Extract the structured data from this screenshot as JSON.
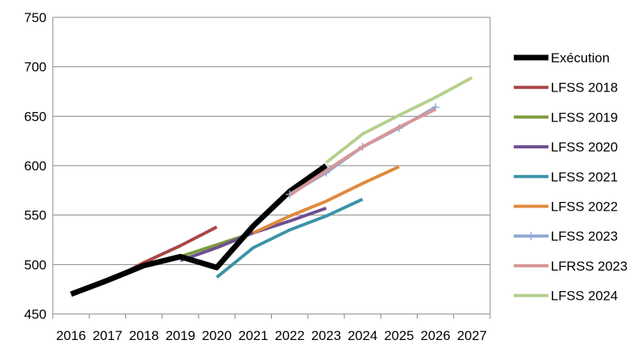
{
  "chart_data": {
    "type": "line",
    "title": "",
    "xlabel": "",
    "ylabel": "",
    "ylim": [
      450,
      750
    ],
    "yticks": [
      450,
      500,
      550,
      600,
      650,
      700,
      750
    ],
    "categories": [
      "2016",
      "2017",
      "2018",
      "2019",
      "2020",
      "2021",
      "2022",
      "2023",
      "2024",
      "2025",
      "2026",
      "2027"
    ],
    "grid": "horizontal",
    "legend_position": "right",
    "series": [
      {
        "name": "Exécution",
        "color": "#000000",
        "values": [
          470,
          484,
          499,
          508,
          497,
          539,
          574,
          600,
          null,
          null,
          null,
          null
        ]
      },
      {
        "name": "LFSS 2018",
        "color": "#A94745",
        "values": [
          null,
          483,
          502,
          519,
          538,
          null,
          null,
          null,
          null,
          null,
          null,
          null
        ]
      },
      {
        "name": "LFSS 2019",
        "color": "#7E9C3F",
        "values": [
          null,
          null,
          498,
          508,
          520,
          532,
          null,
          null,
          null,
          null,
          null,
          null
        ]
      },
      {
        "name": "LFSS 2020",
        "color": "#6D4F90",
        "values": [
          null,
          null,
          null,
          504,
          517,
          532,
          544,
          557,
          null,
          null,
          null,
          null
        ]
      },
      {
        "name": "LFSS 2021",
        "color": "#3A93A7",
        "values": [
          null,
          null,
          null,
          null,
          487,
          517,
          535,
          549,
          566,
          null,
          null,
          null
        ]
      },
      {
        "name": "LFSS 2022",
        "color": "#E08A3C",
        "values": [
          null,
          null,
          null,
          null,
          null,
          532,
          549,
          564,
          582,
          599,
          null,
          null
        ]
      },
      {
        "name": "LFSS 2023",
        "color": "#8FA8D4",
        "values": [
          null,
          null,
          null,
          null,
          null,
          null,
          571,
          593,
          619,
          638,
          659,
          null
        ]
      },
      {
        "name": "LFRSS 2023",
        "color": "#D79696",
        "values": [
          null,
          null,
          null,
          null,
          null,
          null,
          570,
          595,
          619,
          639,
          657,
          null
        ]
      },
      {
        "name": "LFSS 2024",
        "color": "#B5CF8E",
        "values": [
          null,
          null,
          null,
          null,
          null,
          null,
          null,
          603,
          632,
          651,
          669,
          689
        ]
      }
    ]
  }
}
